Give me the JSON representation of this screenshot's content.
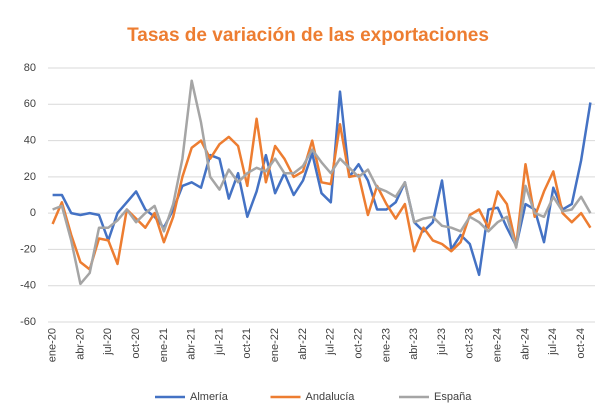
{
  "chart_data": {
    "type": "line",
    "title": "Tasas de variación de las exportaciones",
    "categories": [
      "ene-20",
      null,
      null,
      "abr-20",
      null,
      null,
      "jul-20",
      null,
      null,
      "oct-20",
      null,
      null,
      "ene-21",
      null,
      null,
      "abr-21",
      null,
      null,
      "jul-21",
      null,
      null,
      "oct-21",
      null,
      null,
      "ene-22",
      null,
      null,
      "abr-22",
      null,
      null,
      "jul-22",
      null,
      null,
      "oct-22",
      null,
      null,
      "ene-23",
      null,
      null,
      "abr-23",
      null,
      null,
      "jul-23",
      null,
      null,
      "oct-23",
      null,
      null,
      "ene-24",
      null,
      null,
      "abr-24",
      null,
      null,
      "jul-24",
      null,
      null,
      "oct-24",
      null
    ],
    "series": [
      {
        "name": "Almería",
        "color": "#4472c4",
        "values": [
          10,
          10,
          0,
          -1,
          0,
          -1,
          -15,
          0,
          6,
          12,
          2,
          -2,
          -8,
          2,
          15,
          17,
          14,
          32,
          30,
          8,
          22,
          -2,
          12,
          32,
          11,
          22,
          10,
          18,
          33,
          11,
          6,
          67,
          20,
          27,
          18,
          2,
          2,
          6,
          17,
          -5,
          -10,
          -5,
          18,
          -20,
          -12,
          -17,
          -34,
          2,
          3,
          -8,
          -18,
          5,
          2,
          -16,
          14,
          2,
          5,
          29,
          61
        ]
      },
      {
        "name": "Andalucía",
        "color": "#ed7d31",
        "values": [
          -6,
          6,
          -12,
          -27,
          -31,
          -14,
          -15,
          -28,
          2,
          -3,
          -8,
          0,
          -16,
          -2,
          20,
          36,
          40,
          30,
          38,
          42,
          37,
          15,
          52,
          17,
          37,
          30,
          20,
          23,
          40,
          17,
          16,
          49,
          20,
          21,
          -1,
          15,
          5,
          -3,
          5,
          -21,
          -8,
          -15,
          -17,
          -21,
          -16,
          -1,
          2,
          -8,
          12,
          5,
          -18,
          27,
          -2,
          12,
          23,
          0,
          -5,
          0,
          -8
        ]
      },
      {
        "name": "España",
        "color": "#a5a5a5",
        "values": [
          2,
          4,
          -15,
          -39,
          -33,
          -8,
          -8,
          -4,
          2,
          -5,
          0,
          4,
          -10,
          5,
          30,
          73,
          50,
          20,
          13,
          24,
          17,
          22,
          25,
          23,
          30,
          22,
          22,
          26,
          35,
          28,
          22,
          30,
          25,
          20,
          24,
          14,
          12,
          9,
          17,
          -5,
          -3,
          -2,
          -7,
          -8,
          -10,
          -2,
          -5,
          -10,
          -5,
          -2,
          -19,
          15,
          0,
          -2,
          9,
          1,
          2,
          9,
          0
        ]
      }
    ],
    "ylim": [
      -60,
      80
    ],
    "yticks": [
      -60,
      -40,
      -20,
      0,
      20,
      40,
      60,
      80
    ],
    "grid": true,
    "legend": "bottom"
  }
}
